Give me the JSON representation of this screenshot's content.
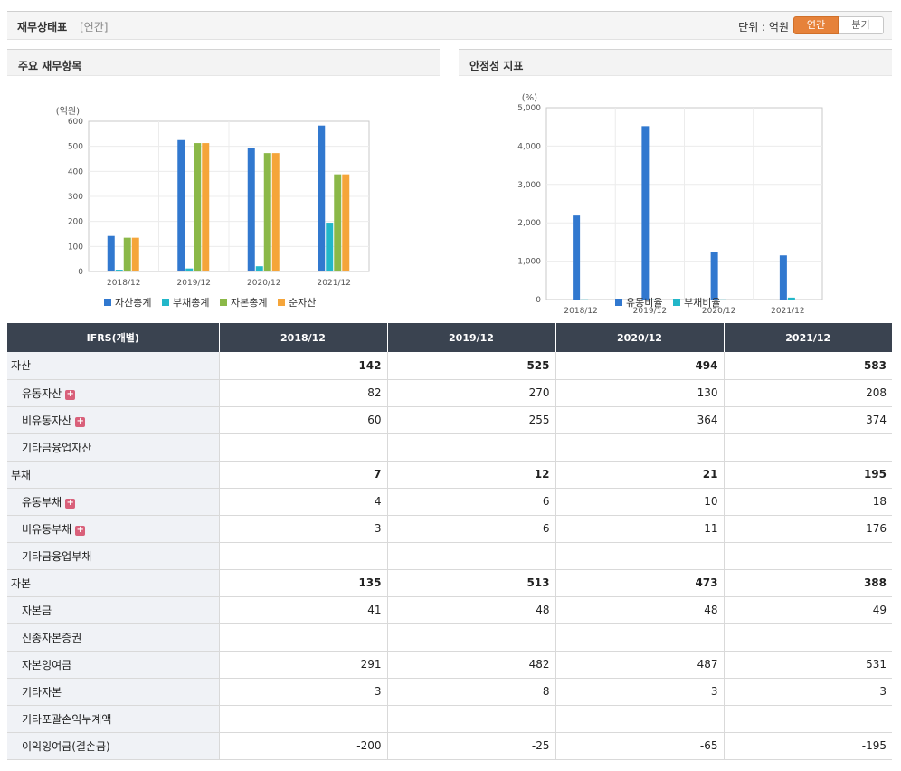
{
  "header": {
    "title": "재무상태표",
    "sub": "[연간]",
    "unit_label": "단위 : 억원",
    "toggle_annual": "연간",
    "toggle_quarter": "분기"
  },
  "panels": {
    "left_title": "주요 재무항목",
    "right_title": "안정성 지표"
  },
  "colors": {
    "blue": "#3178cf",
    "teal": "#22b7c9",
    "green": "#8bb848",
    "orange": "#f5a53a"
  },
  "chart_data": [
    {
      "type": "bar",
      "title": "주요 재무항목",
      "ylabel": "(억원)",
      "categories": [
        "2018/12",
        "2019/12",
        "2020/12",
        "2021/12"
      ],
      "series": [
        {
          "name": "자산총계",
          "color": "#3178cf",
          "values": [
            142,
            525,
            494,
            583
          ]
        },
        {
          "name": "부채총계",
          "color": "#22b7c9",
          "values": [
            7,
            12,
            21,
            195
          ]
        },
        {
          "name": "자본총계",
          "color": "#8bb848",
          "values": [
            135,
            513,
            473,
            388
          ]
        },
        {
          "name": "순자산",
          "color": "#f5a53a",
          "values": [
            135,
            513,
            473,
            388
          ]
        }
      ],
      "ylim": [
        0,
        600
      ],
      "yticks": [
        "0",
        "100",
        "200",
        "300",
        "400",
        "500",
        "600"
      ],
      "grid": true,
      "legend": "bottom"
    },
    {
      "type": "bar",
      "title": "안정성 지표",
      "ylabel": "(%)",
      "categories": [
        "2018/12",
        "2019/12",
        "2020/12",
        "2021/12"
      ],
      "series": [
        {
          "name": "유동비율",
          "color": "#3178cf",
          "values": [
            2190,
            4520,
            1240,
            1150
          ]
        },
        {
          "name": "부채비율",
          "color": "#22b7c9",
          "values": [
            5,
            2,
            4,
            50
          ]
        }
      ],
      "ylim": [
        0,
        5000
      ],
      "yticks": [
        "0",
        "1,000",
        "2,000",
        "3,000",
        "4,000",
        "5,000"
      ],
      "grid": true,
      "legend": "bottom"
    }
  ],
  "table": {
    "header": [
      "IFRS(개별)",
      "2018/12",
      "2019/12",
      "2020/12",
      "2021/12"
    ],
    "rows": [
      {
        "label": "자산",
        "values": [
          "142",
          "525",
          "494",
          "583"
        ],
        "bold": true,
        "sub": false,
        "plus": false
      },
      {
        "label": "유동자산",
        "values": [
          "82",
          "270",
          "130",
          "208"
        ],
        "bold": false,
        "sub": true,
        "plus": true
      },
      {
        "label": "비유동자산",
        "values": [
          "60",
          "255",
          "364",
          "374"
        ],
        "bold": false,
        "sub": true,
        "plus": true
      },
      {
        "label": "기타금융업자산",
        "values": [
          "",
          "",
          "",
          ""
        ],
        "bold": false,
        "sub": true,
        "plus": false
      },
      {
        "label": "부채",
        "values": [
          "7",
          "12",
          "21",
          "195"
        ],
        "bold": true,
        "sub": false,
        "plus": false
      },
      {
        "label": "유동부채",
        "values": [
          "4",
          "6",
          "10",
          "18"
        ],
        "bold": false,
        "sub": true,
        "plus": true
      },
      {
        "label": "비유동부채",
        "values": [
          "3",
          "6",
          "11",
          "176"
        ],
        "bold": false,
        "sub": true,
        "plus": true
      },
      {
        "label": "기타금융업부채",
        "values": [
          "",
          "",
          "",
          ""
        ],
        "bold": false,
        "sub": true,
        "plus": false
      },
      {
        "label": "자본",
        "values": [
          "135",
          "513",
          "473",
          "388"
        ],
        "bold": true,
        "sub": false,
        "plus": false
      },
      {
        "label": "자본금",
        "values": [
          "41",
          "48",
          "48",
          "49"
        ],
        "bold": false,
        "sub": true,
        "plus": false
      },
      {
        "label": "신종자본증권",
        "values": [
          "",
          "",
          "",
          ""
        ],
        "bold": false,
        "sub": true,
        "plus": false
      },
      {
        "label": "자본잉여금",
        "values": [
          "291",
          "482",
          "487",
          "531"
        ],
        "bold": false,
        "sub": true,
        "plus": false
      },
      {
        "label": "기타자본",
        "values": [
          "3",
          "8",
          "3",
          "3"
        ],
        "bold": false,
        "sub": true,
        "plus": false
      },
      {
        "label": "기타포괄손익누계액",
        "values": [
          "",
          "",
          "",
          ""
        ],
        "bold": false,
        "sub": true,
        "plus": false
      },
      {
        "label": "이익잉여금(결손금)",
        "values": [
          "-200",
          "-25",
          "-65",
          "-195"
        ],
        "bold": false,
        "sub": true,
        "plus": false
      }
    ]
  }
}
